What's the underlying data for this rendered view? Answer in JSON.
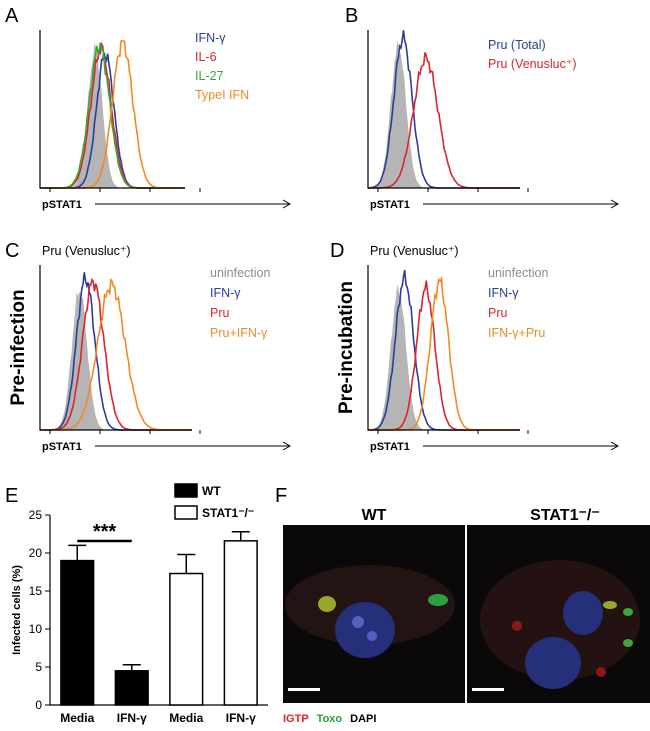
{
  "figure": {
    "panels": [
      {
        "label": "A",
        "xlabel": "pSTAT1",
        "legend": [
          {
            "name": "IFN-γ",
            "color": "#2b3d9c"
          },
          {
            "name": "IL-6",
            "color": "#d8262b"
          },
          {
            "name": "IL-27",
            "color": "#3aa838"
          },
          {
            "name": "TypeI IFN",
            "color": "#f08a24"
          }
        ]
      },
      {
        "label": "B",
        "xlabel": "pSTAT1",
        "legend": [
          {
            "name": "Pru (Total)",
            "color": "#2b3d9c"
          },
          {
            "name": "Pru (Venusluc⁺)",
            "color": "#d8262b"
          }
        ]
      },
      {
        "label": "C",
        "subtitle": "Pru (Venusluc⁺)",
        "ylabel": "Pre-infection",
        "xlabel": "pSTAT1",
        "legend": [
          {
            "name": "uninfection",
            "color": "#8c8c8c"
          },
          {
            "name": "IFN-γ",
            "color": "#2b3d9c"
          },
          {
            "name": "Pru",
            "color": "#d8262b"
          },
          {
            "name": "Pru+IFN-γ",
            "color": "#f08a24"
          }
        ]
      },
      {
        "label": "D",
        "subtitle": "Pru (Venusluc⁺)",
        "ylabel": "Pre-incubation",
        "xlabel": "pSTAT1",
        "legend": [
          {
            "name": "uninfection",
            "color": "#8c8c8c"
          },
          {
            "name": "IFN-γ",
            "color": "#2b3d9c"
          },
          {
            "name": "Pru",
            "color": "#d8262b"
          },
          {
            "name": "IFN-γ+Pru",
            "color": "#f08a24"
          }
        ]
      }
    ],
    "panel_e_label": "E",
    "panel_f": {
      "label": "F",
      "titles": [
        "WT",
        "STAT1⁻/⁻"
      ],
      "stains": [
        {
          "name": "IGTP",
          "color": "#d8262b"
        },
        {
          "name": "Toxo",
          "color": "#2aa03a"
        },
        {
          "name": "DAPI",
          "color": "#000000"
        }
      ]
    }
  },
  "chart_data": {
    "type": "bar",
    "ylabel": "Infected cells (%)",
    "categories": [
      "Media",
      "IFN-γ",
      "Media",
      "IFN-γ"
    ],
    "series": [
      {
        "name": "WT",
        "color": "#000000",
        "values": [
          19,
          4.5,
          null,
          null
        ],
        "errors": [
          2,
          0.8,
          null,
          null
        ]
      },
      {
        "name": "STAT1⁻/⁻",
        "color": "#ffffff",
        "values": [
          null,
          null,
          17.3,
          21.6
        ],
        "errors": [
          null,
          null,
          2.5,
          1.2
        ]
      }
    ],
    "annotation": "***",
    "ylim": [
      0,
      25
    ],
    "yticks": [
      0,
      5,
      10,
      15,
      20,
      25
    ]
  }
}
